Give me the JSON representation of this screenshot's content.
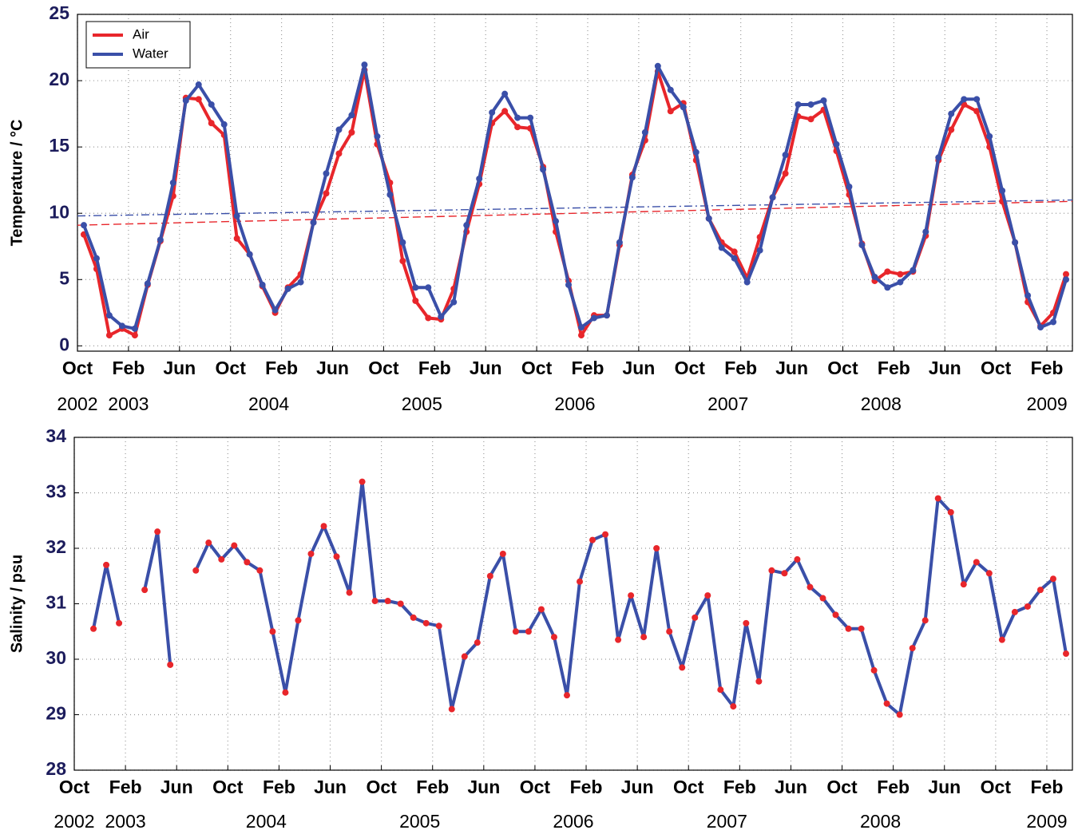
{
  "chart_data": [
    {
      "type": "line",
      "ylabel": "Temperature / °C",
      "x": [
        "2002-10",
        "2002-11",
        "2002-12",
        "2003-01",
        "2003-02",
        "2003-03",
        "2003-04",
        "2003-05",
        "2003-06",
        "2003-07",
        "2003-08",
        "2003-09",
        "2003-10",
        "2003-11",
        "2003-12",
        "2004-01",
        "2004-02",
        "2004-03",
        "2004-04",
        "2004-05",
        "2004-06",
        "2004-07",
        "2004-08",
        "2004-09",
        "2004-10",
        "2004-11",
        "2004-12",
        "2005-01",
        "2005-02",
        "2005-03",
        "2005-04",
        "2005-05",
        "2005-06",
        "2005-07",
        "2005-08",
        "2005-09",
        "2005-10",
        "2005-11",
        "2005-12",
        "2006-01",
        "2006-02",
        "2006-03",
        "2006-04",
        "2006-05",
        "2006-06",
        "2006-07",
        "2006-08",
        "2006-09",
        "2006-10",
        "2006-11",
        "2006-12",
        "2007-01",
        "2007-02",
        "2007-03",
        "2007-04",
        "2007-05",
        "2007-06",
        "2007-07",
        "2007-08",
        "2007-09",
        "2007-10",
        "2007-11",
        "2007-12",
        "2008-01",
        "2008-02",
        "2008-03",
        "2008-04",
        "2008-05",
        "2008-06",
        "2008-07",
        "2008-08",
        "2008-09",
        "2008-10",
        "2008-11",
        "2008-12",
        "2009-01",
        "2009-02",
        "2009-03"
      ],
      "series": [
        {
          "name": "Air",
          "color": "#e8262b",
          "values": [
            8.4,
            5.8,
            0.8,
            1.3,
            0.8,
            4.6,
            7.9,
            11.3,
            18.7,
            18.6,
            16.8,
            15.9,
            8.1,
            6.9,
            4.5,
            2.5,
            4.4,
            5.4,
            9.3,
            11.5,
            14.5,
            16.1,
            20.8,
            15.2,
            12.3,
            6.4,
            3.4,
            2.1,
            2.0,
            4.3,
            8.6,
            12.2,
            16.8,
            17.7,
            16.5,
            16.4,
            13.5,
            8.6,
            4.9,
            0.8,
            2.3,
            2.3,
            7.6,
            12.9,
            15.5,
            20.7,
            17.7,
            18.3,
            14.0,
            9.6,
            7.8,
            7.1,
            5.1,
            8.2,
            11.2,
            13.0,
            17.3,
            17.1,
            17.8,
            14.7,
            11.4,
            7.7,
            4.9,
            5.6,
            5.4,
            5.6,
            8.3,
            14.0,
            16.3,
            18.2,
            17.7,
            15.0,
            10.9,
            7.8,
            3.3,
            1.5,
            2.5,
            5.4
          ]
        },
        {
          "name": "Water",
          "color": "#3a4fa8",
          "values": [
            9.1,
            6.6,
            2.3,
            1.5,
            1.3,
            4.7,
            8.0,
            12.3,
            18.5,
            19.7,
            18.2,
            16.7,
            9.8,
            6.9,
            4.6,
            2.7,
            4.3,
            4.8,
            9.3,
            13.0,
            16.3,
            17.4,
            21.2,
            15.8,
            11.4,
            7.8,
            4.4,
            4.4,
            2.2,
            3.3,
            9.1,
            12.6,
            17.6,
            19.0,
            17.2,
            17.2,
            13.3,
            9.4,
            4.6,
            1.4,
            2.1,
            2.3,
            7.8,
            12.7,
            16.1,
            21.1,
            19.3,
            18.0,
            14.6,
            9.6,
            7.4,
            6.6,
            4.8,
            7.2,
            11.2,
            14.4,
            18.2,
            18.2,
            18.5,
            15.2,
            12.0,
            7.6,
            5.2,
            4.4,
            4.8,
            5.7,
            8.6,
            14.2,
            17.5,
            18.6,
            18.6,
            15.8,
            11.7,
            7.8,
            3.8,
            1.4,
            1.8,
            5.0
          ]
        }
      ],
      "trendlines": [
        {
          "color": "#e8262b",
          "values": [
            9.1,
            10.9
          ]
        },
        {
          "color": "#3a4fa8",
          "values": [
            9.8,
            11.0
          ]
        }
      ],
      "xlim": [
        "2002-10",
        "2009-04"
      ],
      "xticks": [
        {
          "value": "2002-10",
          "label": "Oct"
        },
        {
          "value": "2003-02",
          "label": "Feb"
        },
        {
          "value": "2003-06",
          "label": "Jun"
        },
        {
          "value": "2003-10",
          "label": "Oct"
        },
        {
          "value": "2004-02",
          "label": "Feb"
        },
        {
          "value": "2004-06",
          "label": "Jun"
        },
        {
          "value": "2004-10",
          "label": "Oct"
        },
        {
          "value": "2005-02",
          "label": "Feb"
        },
        {
          "value": "2005-06",
          "label": "Jun"
        },
        {
          "value": "2005-10",
          "label": "Oct"
        },
        {
          "value": "2006-02",
          "label": "Feb"
        },
        {
          "value": "2006-06",
          "label": "Jun"
        },
        {
          "value": "2006-10",
          "label": "Oct"
        },
        {
          "value": "2007-02",
          "label": "Feb"
        },
        {
          "value": "2007-06",
          "label": "Jun"
        },
        {
          "value": "2007-10",
          "label": "Oct"
        },
        {
          "value": "2008-02",
          "label": "Feb"
        },
        {
          "value": "2008-06",
          "label": "Jun"
        },
        {
          "value": "2008-10",
          "label": "Oct"
        },
        {
          "value": "2009-02",
          "label": "Feb"
        }
      ],
      "year_labels": [
        {
          "value": "2002-10",
          "label": "2002"
        },
        {
          "value": "2003-02",
          "label": "2003"
        },
        {
          "value": "2004-01",
          "label": "2004"
        },
        {
          "value": "2005-01",
          "label": "2005"
        },
        {
          "value": "2006-01",
          "label": "2006"
        },
        {
          "value": "2007-01",
          "label": "2007"
        },
        {
          "value": "2008-01",
          "label": "2008"
        },
        {
          "value": "2009-02",
          "label": "2009"
        }
      ],
      "ylim": [
        -0.4,
        25
      ],
      "yticks": [
        0,
        5,
        10,
        15,
        20,
        25
      ],
      "grid": true,
      "legend": "upper left"
    },
    {
      "type": "line",
      "ylabel": "Salinity / psu",
      "x": [
        "2002-10",
        "2002-11",
        "2002-12",
        "2003-01",
        "2003-02",
        "2003-03",
        "2003-04",
        "2003-05",
        "2003-06",
        "2003-07",
        "2003-08",
        "2003-09",
        "2003-10",
        "2003-11",
        "2003-12",
        "2004-01",
        "2004-02",
        "2004-03",
        "2004-04",
        "2004-05",
        "2004-06",
        "2004-07",
        "2004-08",
        "2004-09",
        "2004-10",
        "2004-11",
        "2004-12",
        "2005-01",
        "2005-02",
        "2005-03",
        "2005-04",
        "2005-05",
        "2005-06",
        "2005-07",
        "2005-08",
        "2005-09",
        "2005-10",
        "2005-11",
        "2005-12",
        "2006-01",
        "2006-02",
        "2006-03",
        "2006-04",
        "2006-05",
        "2006-06",
        "2006-07",
        "2006-08",
        "2006-09",
        "2006-10",
        "2006-11",
        "2006-12",
        "2007-01",
        "2007-02",
        "2007-03",
        "2007-04",
        "2007-05",
        "2007-06",
        "2007-07",
        "2007-08",
        "2007-09",
        "2007-10",
        "2007-11",
        "2007-12",
        "2008-01",
        "2008-02",
        "2008-03",
        "2008-04",
        "2008-05",
        "2008-06",
        "2008-07",
        "2008-08",
        "2008-09",
        "2008-10",
        "2008-11",
        "2008-12",
        "2009-01",
        "2009-02",
        "2009-03"
      ],
      "series": [
        {
          "color": "#3a4fa8",
          "marker_color": "#e8262b",
          "values": [
            null,
            30.55,
            31.7,
            30.65,
            null,
            31.25,
            32.3,
            29.9,
            null,
            31.6,
            32.1,
            31.8,
            32.05,
            31.75,
            31.6,
            30.5,
            29.4,
            30.7,
            31.9,
            32.4,
            31.85,
            31.2,
            33.2,
            31.05,
            31.05,
            31.0,
            30.75,
            30.65,
            30.6,
            29.1,
            30.05,
            30.3,
            31.5,
            31.9,
            30.5,
            30.5,
            30.9,
            30.4,
            29.35,
            31.4,
            32.15,
            32.25,
            30.35,
            31.15,
            30.4,
            32.0,
            30.5,
            29.85,
            30.75,
            31.15,
            29.45,
            29.15,
            30.65,
            29.6,
            31.6,
            31.55,
            31.8,
            31.3,
            31.1,
            30.8,
            30.55,
            30.55,
            29.8,
            29.2,
            29.0,
            30.2,
            30.7,
            32.9,
            32.65,
            31.35,
            31.75,
            31.55,
            30.35,
            30.85,
            30.95,
            31.25,
            31.45,
            30.1
          ]
        }
      ],
      "xlim": [
        "2002-10",
        "2009-04"
      ],
      "xticks": [
        {
          "value": "2002-10",
          "label": "Oct"
        },
        {
          "value": "2003-02",
          "label": "Feb"
        },
        {
          "value": "2003-06",
          "label": "Jun"
        },
        {
          "value": "2003-10",
          "label": "Oct"
        },
        {
          "value": "2004-02",
          "label": "Feb"
        },
        {
          "value": "2004-06",
          "label": "Jun"
        },
        {
          "value": "2004-10",
          "label": "Oct"
        },
        {
          "value": "2005-02",
          "label": "Feb"
        },
        {
          "value": "2005-06",
          "label": "Jun"
        },
        {
          "value": "2005-10",
          "label": "Oct"
        },
        {
          "value": "2006-02",
          "label": "Feb"
        },
        {
          "value": "2006-06",
          "label": "Jun"
        },
        {
          "value": "2006-10",
          "label": "Oct"
        },
        {
          "value": "2007-02",
          "label": "Feb"
        },
        {
          "value": "2007-06",
          "label": "Jun"
        },
        {
          "value": "2007-10",
          "label": "Oct"
        },
        {
          "value": "2008-02",
          "label": "Feb"
        },
        {
          "value": "2008-06",
          "label": "Jun"
        },
        {
          "value": "2008-10",
          "label": "Oct"
        },
        {
          "value": "2009-02",
          "label": "Feb"
        }
      ],
      "year_labels": [
        {
          "value": "2002-10",
          "label": "2002"
        },
        {
          "value": "2003-02",
          "label": "2003"
        },
        {
          "value": "2004-01",
          "label": "2004"
        },
        {
          "value": "2005-01",
          "label": "2005"
        },
        {
          "value": "2006-01",
          "label": "2006"
        },
        {
          "value": "2007-01",
          "label": "2007"
        },
        {
          "value": "2008-01",
          "label": "2008"
        },
        {
          "value": "2009-02",
          "label": "2009"
        }
      ],
      "ylim": [
        28,
        34
      ],
      "yticks": [
        28,
        29,
        30,
        31,
        32,
        33,
        34
      ],
      "grid": true
    }
  ]
}
